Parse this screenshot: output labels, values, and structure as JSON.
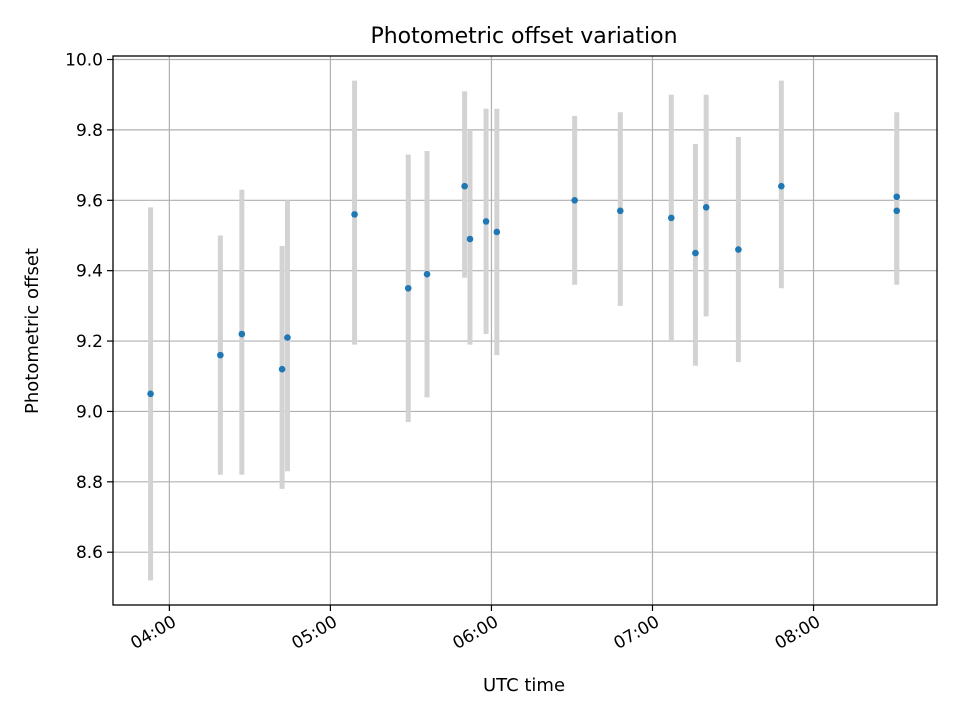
{
  "chart_data": {
    "type": "scatter",
    "title": "Photometric offset variation",
    "xlabel": "UTC time",
    "ylabel": "Photometric offset",
    "x_ticks": [
      "04:00",
      "05:00",
      "06:00",
      "07:00",
      "08:00"
    ],
    "x_tick_hours": [
      4,
      5,
      6,
      7,
      8
    ],
    "y_ticks": [
      "8.6",
      "8.8",
      "9.0",
      "9.2",
      "9.4",
      "9.6",
      "9.8",
      "10.0"
    ],
    "y_tick_values": [
      8.6,
      8.8,
      9.0,
      9.2,
      9.4,
      9.6,
      9.8,
      10.0
    ],
    "xlim": [
      "03:39",
      "08:46"
    ],
    "ylim": [
      8.45,
      10.01
    ],
    "grid": true,
    "legend": "none",
    "colors": {
      "points": "#1f77b4",
      "errorbars": "#d3d3d3",
      "grid": "#b0b0b0"
    },
    "series": [
      {
        "points": [
          {
            "x": "03:53",
            "y": 9.05,
            "ylow": 8.52,
            "yhigh": 9.58
          },
          {
            "x": "04:19",
            "y": 9.16,
            "ylow": 8.82,
            "yhigh": 9.5
          },
          {
            "x": "04:27",
            "y": 9.22,
            "ylow": 8.82,
            "yhigh": 9.63
          },
          {
            "x": "04:42",
            "y": 9.12,
            "ylow": 8.78,
            "yhigh": 9.47
          },
          {
            "x": "04:44",
            "y": 9.21,
            "ylow": 8.83,
            "yhigh": 9.6
          },
          {
            "x": "05:09",
            "y": 9.56,
            "ylow": 9.19,
            "yhigh": 9.94
          },
          {
            "x": "05:29",
            "y": 9.35,
            "ylow": 8.97,
            "yhigh": 9.73
          },
          {
            "x": "05:36",
            "y": 9.39,
            "ylow": 9.04,
            "yhigh": 9.74
          },
          {
            "x": "05:50",
            "y": 9.64,
            "ylow": 9.38,
            "yhigh": 9.91
          },
          {
            "x": "05:52",
            "y": 9.49,
            "ylow": 9.19,
            "yhigh": 9.8
          },
          {
            "x": "05:58",
            "y": 9.54,
            "ylow": 9.22,
            "yhigh": 9.86
          },
          {
            "x": "06:02",
            "y": 9.51,
            "ylow": 9.16,
            "yhigh": 9.86
          },
          {
            "x": "06:31",
            "y": 9.6,
            "ylow": 9.36,
            "yhigh": 9.84
          },
          {
            "x": "06:48",
            "y": 9.57,
            "ylow": 9.3,
            "yhigh": 9.85
          },
          {
            "x": "07:07",
            "y": 9.55,
            "ylow": 9.2,
            "yhigh": 9.9
          },
          {
            "x": "07:16",
            "y": 9.45,
            "ylow": 9.13,
            "yhigh": 9.76
          },
          {
            "x": "07:20",
            "y": 9.58,
            "ylow": 9.27,
            "yhigh": 9.9
          },
          {
            "x": "07:32",
            "y": 9.46,
            "ylow": 9.14,
            "yhigh": 9.78
          },
          {
            "x": "07:48",
            "y": 9.64,
            "ylow": 9.35,
            "yhigh": 9.94
          },
          {
            "x": "08:31",
            "y": 9.57,
            "ylow": 9.36,
            "yhigh": 9.78
          },
          {
            "x": "08:31",
            "y": 9.61,
            "ylow": 9.38,
            "yhigh": 9.85
          }
        ]
      }
    ]
  }
}
